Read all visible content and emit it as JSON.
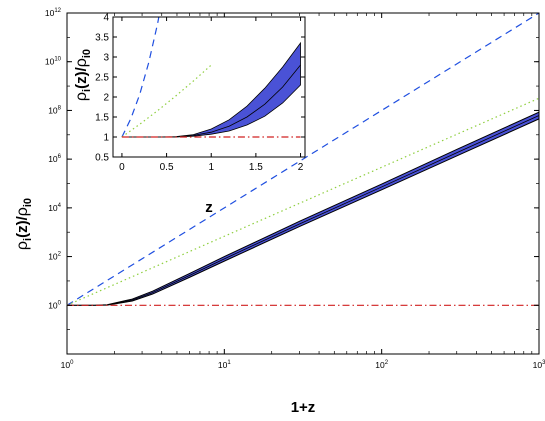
{
  "chart_data": [
    {
      "type": "line",
      "xscale": "log",
      "yscale": "log",
      "xlim": [
        1,
        1000
      ],
      "ylim": [
        0.01,
        1000000000000
      ],
      "xlabel": {
        "main": "1+z"
      },
      "ylabel": {
        "rho": "ρ",
        "sub_i": "i",
        "arg": "(z)/",
        "sub_i0": "i0"
      },
      "x_ticks": [
        {
          "base": "10",
          "exp": "0",
          "value": 1
        },
        {
          "base": "10",
          "exp": "1",
          "value": 10
        },
        {
          "base": "10",
          "exp": "2",
          "value": 100
        },
        {
          "base": "10",
          "exp": "3",
          "value": 1000
        }
      ],
      "y_ticks": [
        {
          "base": "10",
          "exp": "0",
          "value": 1
        },
        {
          "base": "10",
          "exp": "2",
          "value": 100
        },
        {
          "base": "10",
          "exp": "4",
          "value": 10000
        },
        {
          "base": "10",
          "exp": "6",
          "value": 1000000
        },
        {
          "base": "10",
          "exp": "8",
          "value": 100000000
        },
        {
          "base": "10",
          "exp": "10",
          "value": 10000000000
        },
        {
          "base": "10",
          "exp": "12",
          "value": 1000000000000
        }
      ],
      "grid": false,
      "series": [
        {
          "style": "dashed",
          "color": "#1f4fe0",
          "x": [
            1,
            1000
          ],
          "y": [
            1,
            1000000000000
          ]
        },
        {
          "style": "dotted",
          "color": "#8fcf3f",
          "x": [
            1,
            1000
          ],
          "y": [
            1,
            316227766
          ]
        },
        {
          "style": "dash-dot",
          "color": "#d02020",
          "x": [
            1,
            1000
          ],
          "y": [
            1,
            1
          ]
        },
        {
          "style": "band",
          "color": "#4a52d6",
          "x": [
            1,
            1.5,
            1.8,
            2.6,
            3.5,
            6,
            10,
            30,
            100,
            300,
            1000
          ],
          "y_low": [
            1,
            1,
            1.02,
            1.5,
            2.9,
            14,
            65,
            1700,
            55000,
            1350000,
            45000000
          ],
          "y_high": [
            1,
            1,
            1.05,
            1.8,
            3.8,
            20,
            100,
            2800,
            95000,
            2500000,
            85000000
          ]
        }
      ]
    },
    {
      "type": "line",
      "inset": true,
      "xscale": "linear",
      "yscale": "linear",
      "xlim": [
        -0.1,
        2.05
      ],
      "ylim": [
        0.5,
        4
      ],
      "xlabel": {
        "main": "z"
      },
      "ylabel": {
        "rho": "ρ",
        "sub_i": "i",
        "arg": "(z)/",
        "sub_i0": "i0"
      },
      "x_ticks": [
        "0",
        "0.5",
        "1",
        "1.5",
        "2"
      ],
      "x_tick_values": [
        0,
        0.5,
        1,
        1.5,
        2
      ],
      "y_ticks": [
        "0.5",
        "1",
        "1.5",
        "2",
        "2.5",
        "3",
        "3.5",
        "4"
      ],
      "y_tick_values": [
        0.5,
        1,
        1.5,
        2,
        2.5,
        3,
        3.5,
        4
      ],
      "grid": false,
      "series": [
        {
          "style": "dashed",
          "color": "#1f4fe0",
          "x": [
            0,
            0.1,
            0.2,
            0.3,
            0.4,
            0.5
          ],
          "y": [
            1,
            1.46,
            2.07,
            2.86,
            3.84,
            5.06
          ]
        },
        {
          "style": "dotted",
          "color": "#8fcf3f",
          "x": [
            0,
            0.2,
            0.4,
            0.6,
            0.8,
            1.0
          ],
          "y": [
            1,
            1.32,
            1.66,
            2.02,
            2.4,
            2.8
          ]
        },
        {
          "style": "dash-dot",
          "color": "#d02020",
          "x": [
            0,
            2
          ],
          "y": [
            1,
            1
          ]
        },
        {
          "style": "band",
          "color": "#4a52d6",
          "x": [
            0,
            0.4,
            0.6,
            0.8,
            1.0,
            1.2,
            1.4,
            1.6,
            1.8,
            2.0
          ],
          "y_low": [
            1,
            1,
            1.0,
            1.02,
            1.07,
            1.15,
            1.3,
            1.52,
            1.85,
            2.3
          ],
          "y_mid": [
            1,
            1,
            1.0,
            1.04,
            1.12,
            1.27,
            1.5,
            1.82,
            2.25,
            2.8
          ],
          "y_high": [
            1,
            1,
            1.01,
            1.06,
            1.2,
            1.43,
            1.77,
            2.22,
            2.75,
            3.35
          ]
        }
      ]
    }
  ]
}
